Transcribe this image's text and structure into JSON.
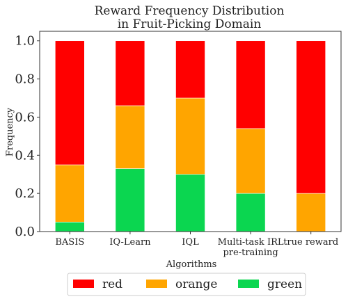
{
  "chart_data": {
    "type": "bar",
    "stacked": true,
    "title": "Reward Frequency Distribution\nin Fruit-Picking Domain",
    "xlabel": "Algorithms",
    "ylabel": "Frequency",
    "ylim": [
      0,
      1.05
    ],
    "yticks": [
      "0.0",
      "0.2",
      "0.4",
      "0.6",
      "0.8",
      "1.0"
    ],
    "categories": [
      "BASIS",
      "IQ-Learn",
      "IQL",
      "Multi-task IRL\npre-training",
      "true reward"
    ],
    "series": [
      {
        "name": "green",
        "color": "#0bd650",
        "values": [
          0.05,
          0.33,
          0.3,
          0.2,
          0.0
        ]
      },
      {
        "name": "orange",
        "color": "#ffa500",
        "values": [
          0.3,
          0.33,
          0.4,
          0.34,
          0.2
        ]
      },
      {
        "name": "red",
        "color": "#ff0000",
        "values": [
          0.65,
          0.34,
          0.3,
          0.46,
          0.8
        ]
      }
    ],
    "legend": {
      "placement": "bottom",
      "order": [
        "red",
        "orange",
        "green"
      ]
    }
  }
}
